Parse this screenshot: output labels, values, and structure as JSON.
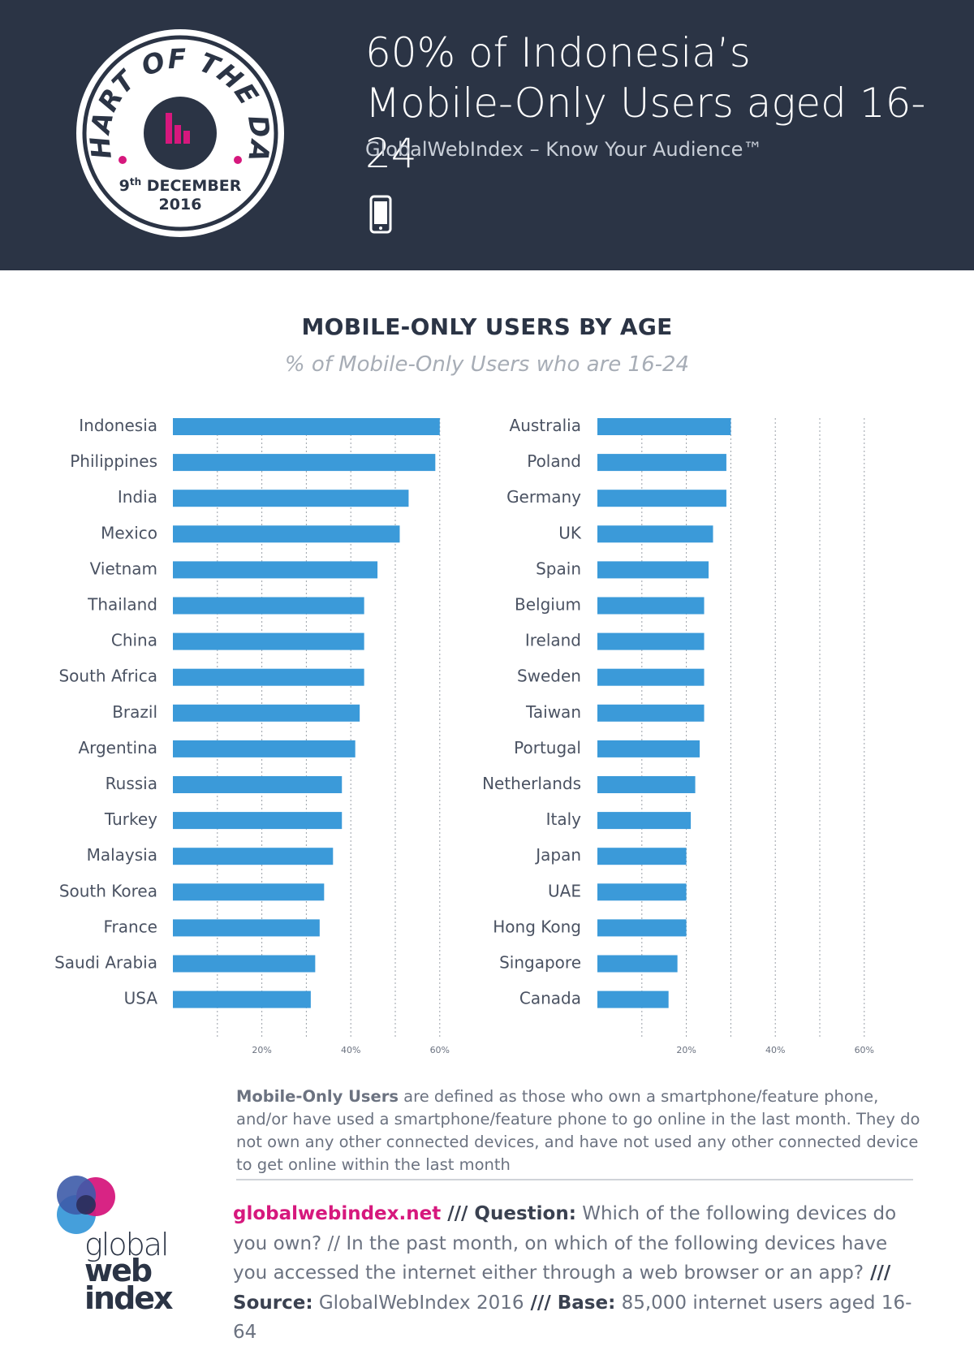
{
  "header": {
    "title_line1": "60% of Indonesia’s",
    "title_line2": "Mobile-Only Users aged 16-24",
    "subtitle": "GlobalWebIndex – Know Your Audience™",
    "badge": {
      "text_arc": "CHART OF THE DAY",
      "day": "9",
      "day_suffix": "th",
      "month": "DECEMBER",
      "year": "2016"
    }
  },
  "colors": {
    "navy": "#2b3445",
    "bar": "#3b9ad9",
    "magenta": "#d6187d",
    "grid": "#9aa0a8"
  },
  "chart_data": [
    {
      "type": "bar",
      "orientation": "horizontal",
      "title": "MOBILE-ONLY USERS BY AGE",
      "subtitle": "% of Mobile-Only Users who are 16-24",
      "categories": [
        "Indonesia",
        "Philippines",
        "India",
        "Mexico",
        "Vietnam",
        "Thailand",
        "China",
        "South Africa",
        "Brazil",
        "Argentina",
        "Russia",
        "Turkey",
        "Malaysia",
        "South Korea",
        "France",
        "Saudi Arabia",
        "USA"
      ],
      "values": [
        60,
        59,
        53,
        51,
        46,
        43,
        43,
        43,
        42,
        41,
        38,
        38,
        36,
        34,
        33,
        32,
        31
      ],
      "xlim": [
        0,
        60
      ],
      "xticks": [
        "20%",
        "40%",
        "60%"
      ],
      "grid": true
    },
    {
      "type": "bar",
      "orientation": "horizontal",
      "categories": [
        "Australia",
        "Poland",
        "Germany",
        "UK",
        "Spain",
        "Belgium",
        "Ireland",
        "Sweden",
        "Taiwan",
        "Portugal",
        "Netherlands",
        "Italy",
        "Japan",
        "UAE",
        "Hong Kong",
        "Singapore",
        "Canada"
      ],
      "values": [
        30,
        29,
        29,
        26,
        25,
        24,
        24,
        24,
        24,
        23,
        22,
        21,
        20,
        20,
        20,
        18,
        16
      ],
      "xlim": [
        0,
        60
      ],
      "xticks": [
        "20%",
        "40%",
        "60%"
      ],
      "grid": true
    }
  ],
  "footnote": {
    "term": "Mobile-Only Users",
    "text": " are defined as those who own a smartphone/feature phone, and/or have used a smartphone/feature phone to go online in the last month. They do not own any other connected devices, and have not used any other connected device to get online within the last month"
  },
  "logo": {
    "line1": "global",
    "line2": "web",
    "line3": "index"
  },
  "source": {
    "link": "globalwebindex.net",
    "sep1": " /// ",
    "question_label": "Question:",
    "question_text": " Which of the following devices do you own? //  In the past month, on which of the following devices have you accessed the internet either through a web browser or an app?",
    "sep2": " /// ",
    "source_label": "Source:",
    "source_text": " GlobalWebIndex 2016",
    "sep3": " /// ",
    "base_label": "Base:",
    "base_text": " 85,000 internet users aged 16-64"
  }
}
